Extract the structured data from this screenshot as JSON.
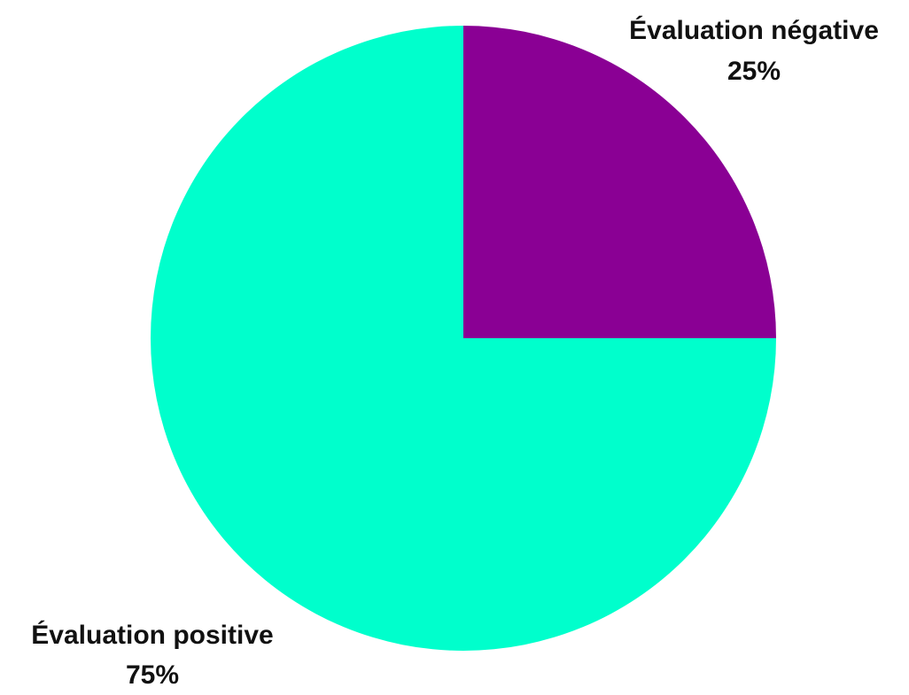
{
  "chart_data": {
    "type": "pie",
    "start_angle_deg": 0,
    "direction": "clockwise",
    "slices": [
      {
        "label": "Évaluation négative",
        "value": 25,
        "value_label": "25%",
        "color": "#8a0094"
      },
      {
        "label": "Évaluation positive",
        "value": 75,
        "value_label": "75%",
        "color": "#00ffcc"
      }
    ]
  }
}
